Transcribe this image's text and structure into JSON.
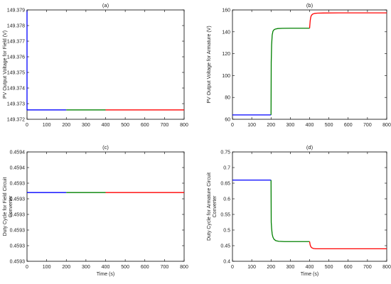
{
  "chart_data": [
    {
      "type": "line",
      "title": "(a)",
      "xlabel": "",
      "ylabel": "PV Output Voltage for Field (V)",
      "xlim": [
        0,
        800
      ],
      "ylim": [
        149.372,
        149.379
      ],
      "xticks": [
        0,
        100,
        200,
        300,
        400,
        500,
        600,
        700,
        800
      ],
      "yticks": [
        149.372,
        149.373,
        149.374,
        149.375,
        149.376,
        149.377,
        149.378,
        149.379
      ],
      "ytick_labels": [
        "149.372",
        "149.373",
        "149.374",
        "149.375",
        "149.376",
        "149.377",
        "149.378",
        "149.379"
      ],
      "grid": false,
      "series": [
        {
          "color": "#0000ff",
          "x": [
            0,
            0,
            200
          ],
          "y": [
            149.379,
            149.3726,
            149.3726
          ]
        },
        {
          "color": "#008000",
          "x": [
            200,
            400
          ],
          "y": [
            149.3726,
            149.3726
          ]
        },
        {
          "color": "#ff0000",
          "x": [
            400,
            800
          ],
          "y": [
            149.3726,
            149.3726
          ]
        }
      ]
    },
    {
      "type": "line",
      "title": "(b)",
      "xlabel": "",
      "ylabel": "PV Output Voltage for Armature (V)",
      "xlim": [
        0,
        800
      ],
      "ylim": [
        60,
        160
      ],
      "xticks": [
        0,
        100,
        200,
        300,
        400,
        500,
        600,
        700,
        800
      ],
      "yticks": [
        60,
        80,
        100,
        120,
        140,
        160
      ],
      "ytick_labels": [
        "60",
        "80",
        "100",
        "120",
        "140",
        "160"
      ],
      "grid": false,
      "series": [
        {
          "color": "#0000ff",
          "x": [
            0,
            200
          ],
          "y": [
            64,
            64
          ]
        },
        {
          "color": "#008000",
          "x": [
            200,
            201,
            203,
            206,
            210,
            215,
            222,
            235,
            260,
            300,
            398,
            400
          ],
          "y": [
            64,
            112,
            128,
            137,
            140.5,
            141.8,
            142.5,
            143,
            143.2,
            143.3,
            143.3,
            143.3
          ]
        },
        {
          "color": "#ff0000",
          "x": [
            400,
            403,
            406,
            410,
            416,
            425,
            440,
            470,
            550,
            800
          ],
          "y": [
            143.3,
            150,
            153.5,
            155.2,
            156.2,
            156.8,
            157.1,
            157.2,
            157.3,
            157.3
          ]
        }
      ]
    },
    {
      "type": "line",
      "title": "(c)",
      "xlabel": "Time (s)",
      "ylabel": "Duty Cycle for Field Circuit Converter",
      "xlim": [
        0,
        800
      ],
      "ylim": [
        0,
        7
      ],
      "xticks": [
        0,
        100,
        200,
        300,
        400,
        500,
        600,
        700,
        800
      ],
      "yticks": [
        0,
        1,
        2,
        3,
        4,
        5,
        6,
        7
      ],
      "ytick_labels": [
        "0.4593",
        "0.4593",
        "0.4593",
        "0.4593",
        "0.4593",
        "0.4593",
        "0.4594",
        "0.4594"
      ],
      "grid": false,
      "series": [
        {
          "color": "#0000ff",
          "x": [
            0,
            200
          ],
          "y": [
            4.4,
            4.4
          ]
        },
        {
          "color": "#008000",
          "x": [
            200,
            400
          ],
          "y": [
            4.4,
            4.4
          ]
        },
        {
          "color": "#ff0000",
          "x": [
            400,
            800
          ],
          "y": [
            4.4,
            4.4
          ]
        }
      ]
    },
    {
      "type": "line",
      "title": "(d)",
      "xlabel": "Time (s)",
      "ylabel": "Duty Cycle for Armature Circuit Converter",
      "xlim": [
        0,
        800
      ],
      "ylim": [
        0.4,
        0.75
      ],
      "xticks": [
        0,
        100,
        200,
        300,
        400,
        500,
        600,
        700,
        800
      ],
      "yticks": [
        0.4,
        0.45,
        0.5,
        0.55,
        0.6,
        0.65,
        0.7,
        0.75
      ],
      "ytick_labels": [
        "0.4",
        "0.45",
        "0.5",
        "0.55",
        "0.6",
        "0.65",
        "0.7",
        "0.75"
      ],
      "grid": false,
      "series": [
        {
          "color": "#0000ff",
          "x": [
            0,
            200
          ],
          "y": [
            0.66,
            0.66
          ]
        },
        {
          "color": "#008000",
          "x": [
            200,
            201,
            203,
            206,
            210,
            216,
            225,
            240,
            270,
            320,
            398,
            400
          ],
          "y": [
            0.66,
            0.525,
            0.505,
            0.487,
            0.477,
            0.47,
            0.466,
            0.464,
            0.463,
            0.463,
            0.463,
            0.463
          ]
        },
        {
          "color": "#ff0000",
          "x": [
            400,
            403,
            407,
            412,
            420,
            432,
            450,
            490,
            600,
            800
          ],
          "y": [
            0.463,
            0.452,
            0.446,
            0.443,
            0.441,
            0.44,
            0.44,
            0.44,
            0.44,
            0.44
          ]
        }
      ]
    }
  ]
}
